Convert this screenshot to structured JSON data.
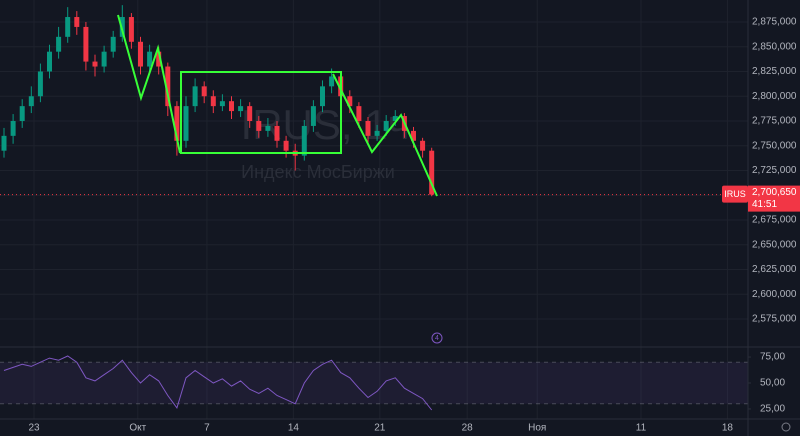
{
  "chart_data": [
    {
      "type": "candlestick",
      "open": [
        2745000,
        2760000,
        2775000,
        2790000,
        2800000,
        2825000,
        2845000,
        2860000,
        2880000,
        2870000,
        2835000,
        2830000,
        2845000,
        2860000,
        2880000,
        2855000,
        2830000,
        2845000,
        2830000,
        2790000,
        2755000,
        2790000,
        2810000,
        2800000,
        2790000,
        2795000,
        2785000,
        2790000,
        2775000,
        2765000,
        2770000,
        2755000,
        2745000,
        2740000,
        2770000,
        2790000,
        2810000,
        2820000,
        2800000,
        2790000,
        2775000,
        2760000,
        2765000,
        2775000,
        2780000,
        2765000,
        2755000,
        2745000
      ],
      "high": [
        2768000,
        2782000,
        2797000,
        2810000,
        2833000,
        2852000,
        2870000,
        2890000,
        2886000,
        2875000,
        2842000,
        2851000,
        2866000,
        2892000,
        2884000,
        2860000,
        2852000,
        2850000,
        2834000,
        2795000,
        2800000,
        2818000,
        2815000,
        2806000,
        2802000,
        2800000,
        2797000,
        2794000,
        2780000,
        2778000,
        2775000,
        2760000,
        2752000,
        2776000,
        2796000,
        2816000,
        2828000,
        2824000,
        2806000,
        2794000,
        2779000,
        2771000,
        2781000,
        2786000,
        2783000,
        2769000,
        2758000,
        2748000
      ],
      "low": [
        2738000,
        2752000,
        2768000,
        2783000,
        2794000,
        2818000,
        2838000,
        2854000,
        2862000,
        2826000,
        2820000,
        2824000,
        2839000,
        2855000,
        2848000,
        2822000,
        2824000,
        2822000,
        2780000,
        2740000,
        2748000,
        2784000,
        2793000,
        2783000,
        2785000,
        2777000,
        2779000,
        2768000,
        2758000,
        2759000,
        2748000,
        2738000,
        2725000,
        2735000,
        2764000,
        2784000,
        2803000,
        2794000,
        2783000,
        2768000,
        2753000,
        2755000,
        2760000,
        2770000,
        2758000,
        2748000,
        2738000,
        2699000
      ],
      "close": [
        2760000,
        2775000,
        2790000,
        2800000,
        2825000,
        2845000,
        2860000,
        2880000,
        2870000,
        2835000,
        2830000,
        2845000,
        2860000,
        2880000,
        2855000,
        2830000,
        2845000,
        2830000,
        2790000,
        2755000,
        2790000,
        2810000,
        2800000,
        2790000,
        2795000,
        2785000,
        2790000,
        2775000,
        2765000,
        2770000,
        2755000,
        2745000,
        2740000,
        2770000,
        2790000,
        2810000,
        2820000,
        2800000,
        2790000,
        2775000,
        2760000,
        2765000,
        2775000,
        2780000,
        2765000,
        2755000,
        2745000,
        2700650
      ],
      "up_color": "#089981",
      "down_color": "#f23645",
      "xlim": [
        -0.44,
        81.76
      ],
      "xticks": [
        {
          "value": 3.3,
          "label": "23"
        },
        {
          "value": 14.7,
          "label": "Окт"
        },
        {
          "value": 22.3,
          "label": "7"
        },
        {
          "value": 31.8,
          "label": "14"
        },
        {
          "value": 41.3,
          "label": "21"
        },
        {
          "value": 50.9,
          "label": "28"
        },
        {
          "value": 58.6,
          "label": "Ноя"
        },
        {
          "value": 70,
          "label": "11"
        },
        {
          "value": 79.5,
          "label": "18"
        }
      ],
      "ylim": [
        2548750,
        2897200
      ],
      "yticks": [
        {
          "value": 2575000,
          "label": "2,575,000"
        },
        {
          "value": 2600000,
          "label": "2,600,000"
        },
        {
          "value": 2625000,
          "label": "2,625,000"
        },
        {
          "value": 2650000,
          "label": "2,650,000"
        },
        {
          "value": 2675000,
          "label": "2,675,000"
        },
        {
          "value": 2700000,
          "label": "2,700,000"
        },
        {
          "value": 2725000,
          "label": "2,725,000"
        },
        {
          "value": 2750000,
          "label": "2,750,000"
        },
        {
          "value": 2775000,
          "label": "2,775,000"
        },
        {
          "value": 2800000,
          "label": "2,800,000"
        },
        {
          "value": 2825000,
          "label": "2,825,000"
        },
        {
          "value": 2850000,
          "label": "2,850,000"
        },
        {
          "value": 2875000,
          "label": "2,875,000"
        }
      ],
      "grid": true,
      "watermark": {
        "symbol": "IRUS, 1ч",
        "name": "Индекс МосБиржи"
      },
      "event_marker": "4",
      "price_label": {
        "symbol": "IRUS",
        "value": 2700650,
        "label": "2,700,650",
        "countdown": "41:51",
        "color": "#f23645"
      }
    },
    {
      "type": "line",
      "values": [
        62,
        65,
        68,
        66,
        70,
        74,
        72,
        76,
        70,
        55,
        52,
        58,
        64,
        72,
        60,
        50,
        58,
        52,
        38,
        26,
        55,
        62,
        56,
        50,
        54,
        47,
        52,
        44,
        40,
        45,
        38,
        34,
        30,
        50,
        62,
        68,
        72,
        60,
        55,
        45,
        36,
        42,
        52,
        55,
        45,
        40,
        35,
        24
      ],
      "color": "#7e57c2",
      "xlim": [
        -0.44,
        81.76
      ],
      "ylim": [
        16.3,
        83.7
      ],
      "yticks": [
        {
          "value": 25,
          "label": "25,00"
        },
        {
          "value": 50,
          "label": "50,00"
        },
        {
          "value": 75,
          "label": "75,00"
        }
      ],
      "band": [
        30,
        70
      ]
    }
  ]
}
